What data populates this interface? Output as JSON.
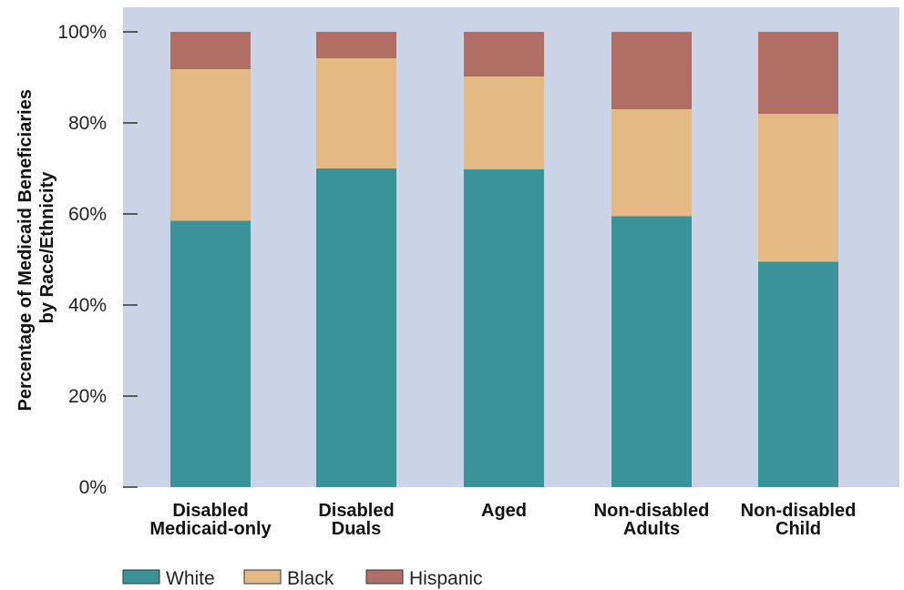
{
  "chart_data": {
    "type": "bar",
    "stacked": true,
    "categories": [
      [
        "Disabled",
        "Medicaid-only"
      ],
      [
        "Disabled",
        "Duals"
      ],
      [
        "Aged"
      ],
      [
        "Non-disabled",
        "Adults"
      ],
      [
        "Non-disabled",
        "Child"
      ]
    ],
    "series": [
      {
        "name": "White",
        "color": "#3a9399",
        "values": [
          58.5,
          70.0,
          69.8,
          59.5,
          49.5
        ]
      },
      {
        "name": "Black",
        "color": "#e5b983",
        "values": [
          33.3,
          24.2,
          20.4,
          23.5,
          32.5
        ]
      },
      {
        "name": "Hispanic",
        "color": "#b06e65",
        "values": [
          8.2,
          5.8,
          9.8,
          17.0,
          18.0
        ]
      }
    ],
    "ylabel": [
      "Percentage of Medicaid Beneficiaries",
      "by Race/Ethnicity"
    ],
    "yticks": [
      "0%",
      "20%",
      "40%",
      "60%",
      "80%",
      "100%"
    ],
    "ylim": [
      0,
      100
    ],
    "grid": false,
    "plot_background": "#cbd3e6",
    "legend_position": "bottom-left"
  }
}
